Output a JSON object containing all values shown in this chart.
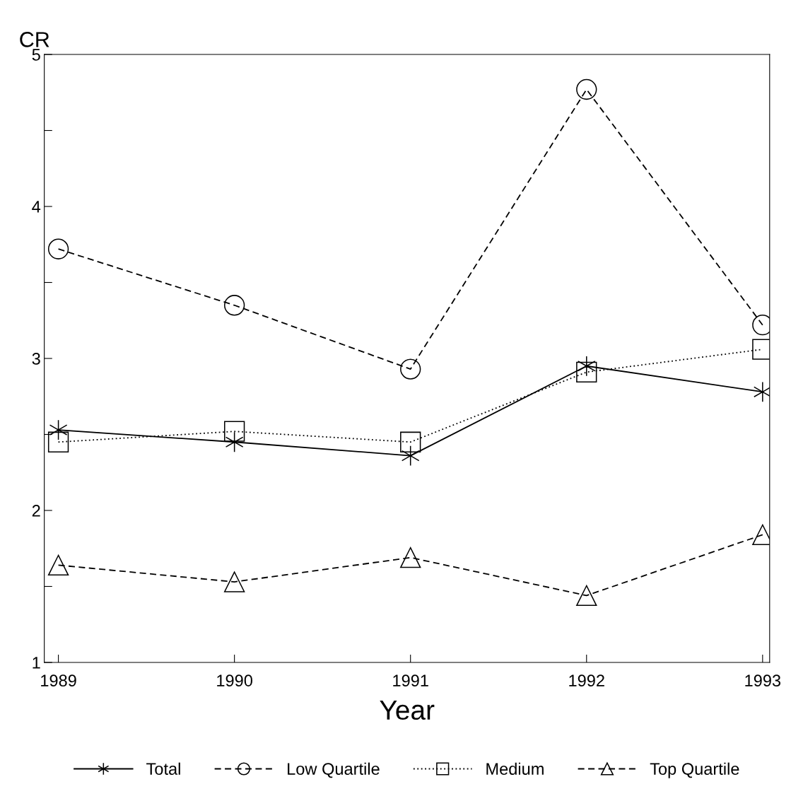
{
  "chart_data": {
    "type": "line",
    "xlabel": "Year",
    "ylabel": "CR",
    "x": [
      1989,
      1990,
      1991,
      1992,
      1993
    ],
    "series": [
      {
        "name": "Total",
        "color": "#000000",
        "values": [
          2.53,
          2.45,
          2.36,
          2.95,
          2.78
        ],
        "marker": "cross",
        "line_style": "solid"
      },
      {
        "name": "Low Quartile",
        "color": "#000000",
        "values": [
          3.72,
          3.35,
          2.93,
          4.77,
          3.22
        ],
        "marker": "circle",
        "line_style": "dashed"
      },
      {
        "name": "Medium",
        "color": "#000000",
        "values": [
          2.45,
          2.52,
          2.45,
          2.91,
          3.06
        ],
        "marker": "square",
        "line_style": "dotted"
      },
      {
        "name": "Top Quartile",
        "color": "#000000",
        "values": [
          1.64,
          1.53,
          1.69,
          1.44,
          1.84
        ],
        "marker": "triangle",
        "line_style": "dashed"
      }
    ],
    "xlim": [
      1988.92,
      1993.04
    ],
    "xticks": [
      1989,
      1990,
      1991,
      1992,
      1993
    ],
    "ylim": [
      1,
      5
    ],
    "yticks": [
      1,
      {
        "value": 1.5,
        "label": null
      },
      2,
      {
        "value": 2.5,
        "label": null
      },
      3,
      {
        "value": 3.5,
        "label": null
      },
      4,
      {
        "value": 4.5,
        "label": null
      },
      5
    ],
    "grid": false,
    "legend": "bottom"
  }
}
